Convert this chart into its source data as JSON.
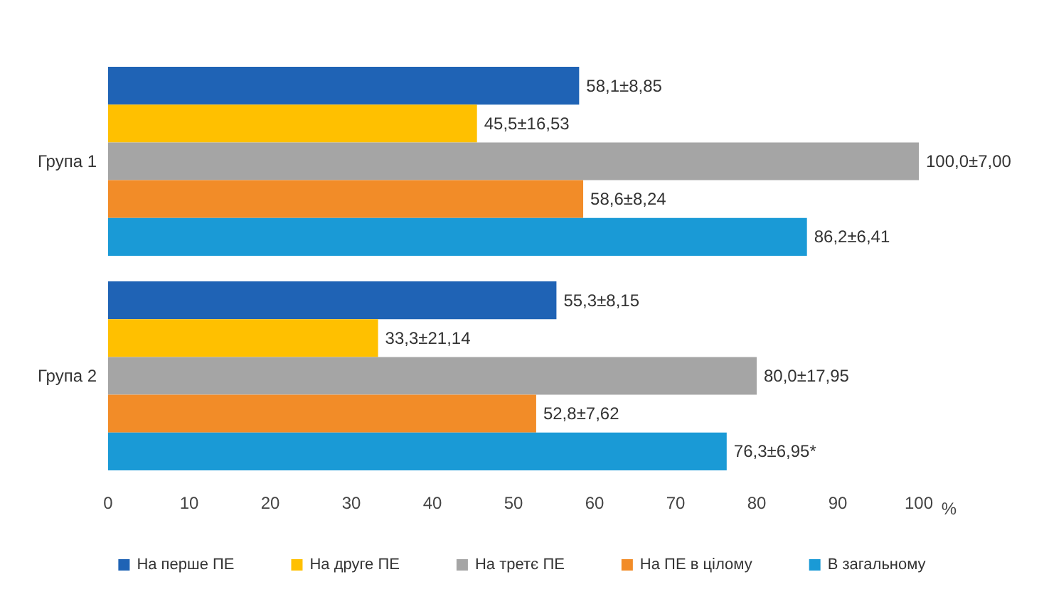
{
  "chart_data": {
    "type": "bar",
    "orientation": "horizontal",
    "categories": [
      "Група 1",
      "Група 2"
    ],
    "series": [
      {
        "name": "На перше ПЕ",
        "color": "#1f63b5",
        "values": [
          58.1,
          55.3
        ],
        "value_labels": [
          "58,1±8,85",
          "55,3±8,15"
        ]
      },
      {
        "name": "На друге ПЕ",
        "color": "#ffc000",
        "values": [
          45.5,
          33.3
        ],
        "value_labels": [
          "45,5±16,53",
          "33,3±21,14"
        ]
      },
      {
        "name": "На третє ПЕ",
        "color": "#a5a5a5",
        "values": [
          100.0,
          80.0
        ],
        "value_labels": [
          "100,0±7,00",
          "80,0±17,95"
        ]
      },
      {
        "name": "На ПЕ в цілому",
        "color": "#f28c28",
        "values": [
          58.6,
          52.8
        ],
        "value_labels": [
          "58,6±8,24",
          "52,8±7,62"
        ]
      },
      {
        "name": "В загальному",
        "color": "#1a9ad6",
        "values": [
          86.2,
          76.3
        ],
        "value_labels": [
          "86,2±6,41",
          "76,3±6,95*"
        ]
      }
    ],
    "xlabel": "%",
    "xlim": [
      0,
      100
    ],
    "xticks": [
      0,
      10,
      20,
      30,
      40,
      50,
      60,
      70,
      80,
      90,
      100
    ],
    "grid": false,
    "legend": "bottom"
  }
}
